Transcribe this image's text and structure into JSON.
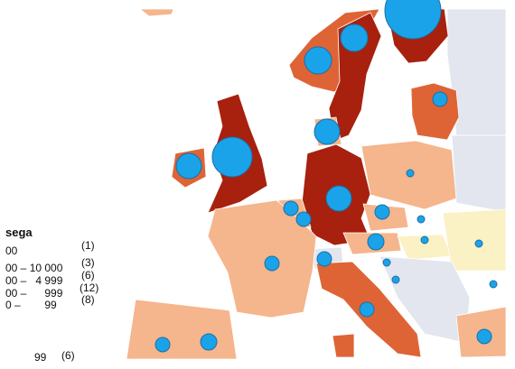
{
  "legend": {
    "title": "sega",
    "items": [
      {
        "range": "00",
        "count": "(1)"
      },
      {
        "range": "00 – 10 000",
        "count": "(3)"
      },
      {
        "range": "00 –   4 999",
        "count": "(6)"
      },
      {
        "range": "00 –      999",
        "count": "(12)"
      },
      {
        "range": "0 –        99",
        "count": "(8)"
      }
    ]
  },
  "footer": {
    "range": "99",
    "count": "(6)"
  }
}
